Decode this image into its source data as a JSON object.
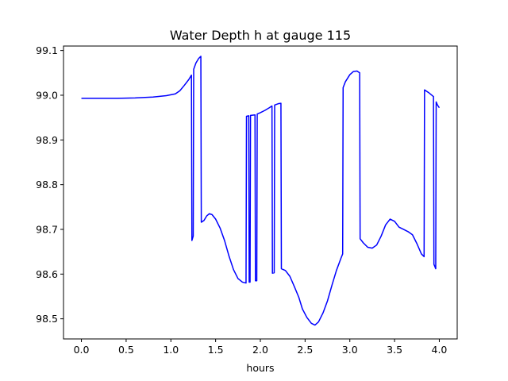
{
  "chart_data": {
    "type": "line",
    "title": "Water Depth h at gauge 115",
    "xlabel": "hours",
    "ylabel": "",
    "xlim": [
      -0.2,
      4.2
    ],
    "ylim": [
      98.455,
      99.11
    ],
    "x_ticks": [
      0.0,
      0.5,
      1.0,
      1.5,
      2.0,
      2.5,
      3.0,
      3.5,
      4.0
    ],
    "x_tick_labels": [
      "0.0",
      "0.5",
      "1.0",
      "1.5",
      "2.0",
      "2.5",
      "3.0",
      "3.5",
      "4.0"
    ],
    "y_ticks": [
      98.5,
      98.6,
      98.7,
      98.8,
      98.9,
      99.0,
      99.1
    ],
    "y_tick_labels": [
      "98.5",
      "98.6",
      "98.7",
      "98.8",
      "98.9",
      "99.0",
      "99.1"
    ],
    "grid": false,
    "series": [
      {
        "color": "#0000ff",
        "points": [
          [
            0.0,
            98.993
          ],
          [
            0.2,
            98.993
          ],
          [
            0.4,
            98.993
          ],
          [
            0.6,
            98.994
          ],
          [
            0.8,
            98.996
          ],
          [
            0.95,
            98.999
          ],
          [
            1.05,
            99.003
          ],
          [
            1.1,
            99.01
          ],
          [
            1.15,
            99.022
          ],
          [
            1.2,
            99.035
          ],
          [
            1.23,
            99.045
          ],
          [
            1.235,
            98.675
          ],
          [
            1.25,
            98.685
          ],
          [
            1.255,
            99.058
          ],
          [
            1.28,
            99.072
          ],
          [
            1.31,
            99.082
          ],
          [
            1.335,
            99.087
          ],
          [
            1.34,
            98.716
          ],
          [
            1.37,
            98.72
          ],
          [
            1.4,
            98.73
          ],
          [
            1.43,
            98.735
          ],
          [
            1.46,
            98.733
          ],
          [
            1.5,
            98.723
          ],
          [
            1.55,
            98.703
          ],
          [
            1.6,
            98.675
          ],
          [
            1.65,
            98.64
          ],
          [
            1.7,
            98.61
          ],
          [
            1.75,
            98.59
          ],
          [
            1.8,
            98.582
          ],
          [
            1.84,
            98.58
          ],
          [
            1.845,
            98.953
          ],
          [
            1.87,
            98.954
          ],
          [
            1.875,
            98.582
          ],
          [
            1.885,
            98.582
          ],
          [
            1.89,
            98.955
          ],
          [
            1.94,
            98.956
          ],
          [
            1.945,
            98.585
          ],
          [
            1.96,
            98.585
          ],
          [
            1.965,
            98.958
          ],
          [
            2.0,
            98.961
          ],
          [
            2.05,
            98.966
          ],
          [
            2.1,
            98.972
          ],
          [
            2.13,
            98.976
          ],
          [
            2.135,
            98.602
          ],
          [
            2.155,
            98.603
          ],
          [
            2.16,
            98.978
          ],
          [
            2.2,
            98.981
          ],
          [
            2.23,
            98.982
          ],
          [
            2.235,
            98.612
          ],
          [
            2.28,
            98.608
          ],
          [
            2.33,
            98.595
          ],
          [
            2.38,
            98.572
          ],
          [
            2.43,
            98.548
          ],
          [
            2.47,
            98.522
          ],
          [
            2.52,
            98.503
          ],
          [
            2.57,
            98.49
          ],
          [
            2.61,
            98.486
          ],
          [
            2.65,
            98.493
          ],
          [
            2.7,
            98.513
          ],
          [
            2.75,
            98.54
          ],
          [
            2.8,
            98.575
          ],
          [
            2.85,
            98.608
          ],
          [
            2.9,
            98.635
          ],
          [
            2.92,
            98.645
          ],
          [
            2.925,
            99.017
          ],
          [
            2.95,
            99.03
          ],
          [
            3.0,
            99.046
          ],
          [
            3.04,
            99.053
          ],
          [
            3.08,
            99.054
          ],
          [
            3.11,
            99.05
          ],
          [
            3.115,
            98.679
          ],
          [
            3.15,
            98.67
          ],
          [
            3.2,
            98.66
          ],
          [
            3.25,
            98.658
          ],
          [
            3.3,
            98.665
          ],
          [
            3.35,
            98.685
          ],
          [
            3.4,
            98.71
          ],
          [
            3.45,
            98.723
          ],
          [
            3.5,
            98.718
          ],
          [
            3.55,
            98.705
          ],
          [
            3.6,
            98.7
          ],
          [
            3.65,
            98.695
          ],
          [
            3.7,
            98.688
          ],
          [
            3.75,
            98.668
          ],
          [
            3.8,
            98.645
          ],
          [
            3.83,
            98.639
          ],
          [
            3.835,
            99.012
          ],
          [
            3.88,
            99.006
          ],
          [
            3.935,
            98.997
          ],
          [
            3.94,
            98.622
          ],
          [
            3.96,
            98.612
          ],
          [
            3.965,
            98.985
          ],
          [
            3.98,
            98.978
          ],
          [
            4.0,
            98.972
          ]
        ]
      }
    ]
  }
}
